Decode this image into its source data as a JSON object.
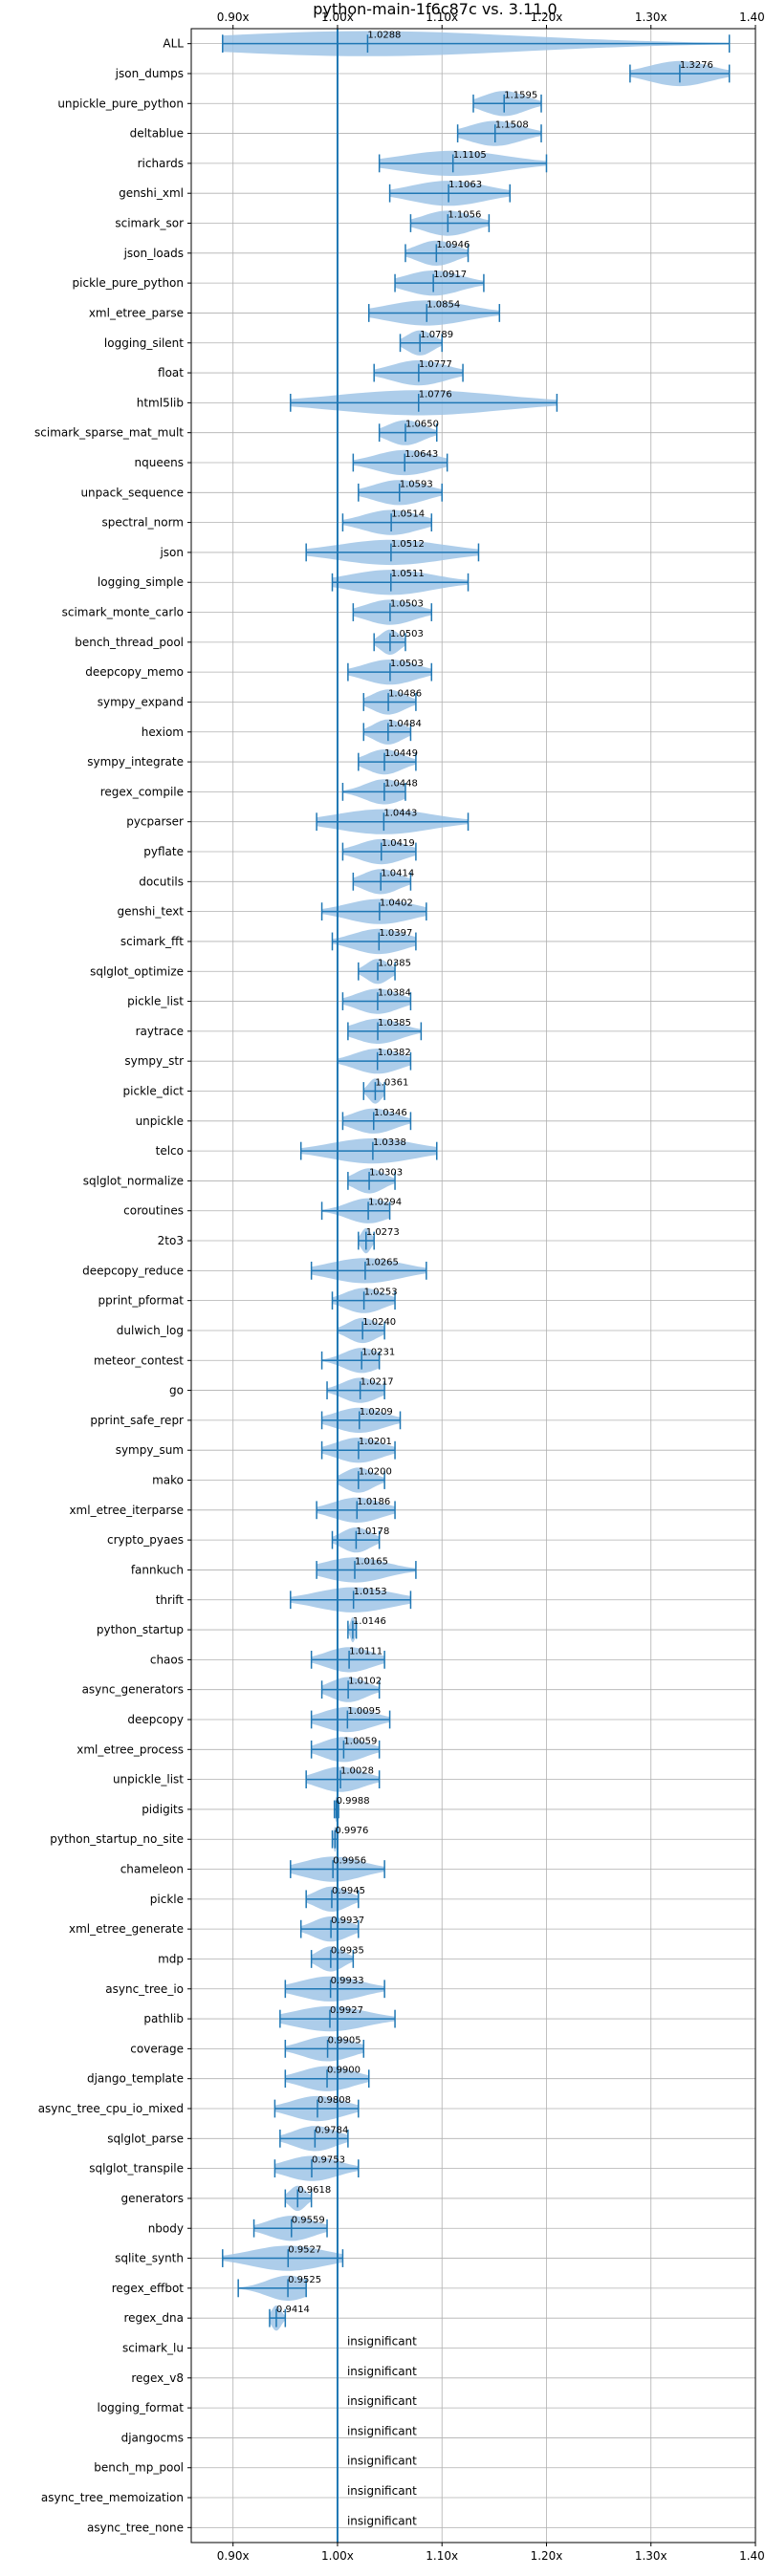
{
  "chart_data": {
    "type": "violin",
    "title": "python-main-1f6c87c vs. 3.11.0",
    "xlim": [
      0.86,
      1.4
    ],
    "x_ticks": [
      0.9,
      1.0,
      1.1,
      1.2,
      1.3,
      1.4
    ],
    "x_tick_labels": [
      "0.90x",
      "1.00x",
      "1.10x",
      "1.20x",
      "1.30x",
      "1.40x"
    ],
    "reference_line_x": 1.0,
    "grid": true,
    "colors": {
      "violin_fill": "#9fc4e6",
      "line": "#1f77b4",
      "grid": "#b0b0b0"
    },
    "insignificant_label": "insignificant",
    "benchmarks": [
      {
        "name": "ALL",
        "value": 1.0288,
        "min": 0.89,
        "max": 1.375
      },
      {
        "name": "json_dumps",
        "value": 1.3276,
        "min": 1.28,
        "max": 1.375
      },
      {
        "name": "unpickle_pure_python",
        "value": 1.1595,
        "min": 1.13,
        "max": 1.195
      },
      {
        "name": "deltablue",
        "value": 1.1508,
        "min": 1.115,
        "max": 1.195
      },
      {
        "name": "richards",
        "value": 1.1105,
        "min": 1.04,
        "max": 1.2
      },
      {
        "name": "genshi_xml",
        "value": 1.1063,
        "min": 1.05,
        "max": 1.165
      },
      {
        "name": "scimark_sor",
        "value": 1.1056,
        "min": 1.07,
        "max": 1.145
      },
      {
        "name": "json_loads",
        "value": 1.0946,
        "min": 1.065,
        "max": 1.125
      },
      {
        "name": "pickle_pure_python",
        "value": 1.0917,
        "min": 1.055,
        "max": 1.14
      },
      {
        "name": "xml_etree_parse",
        "value": 1.0854,
        "min": 1.03,
        "max": 1.155
      },
      {
        "name": "logging_silent",
        "value": 1.0789,
        "min": 1.06,
        "max": 1.1
      },
      {
        "name": "float",
        "value": 1.0777,
        "min": 1.035,
        "max": 1.12
      },
      {
        "name": "html5lib",
        "value": 1.0776,
        "min": 0.955,
        "max": 1.21
      },
      {
        "name": "scimark_sparse_mat_mult",
        "value": 1.065,
        "min": 1.04,
        "max": 1.095
      },
      {
        "name": "nqueens",
        "value": 1.0643,
        "min": 1.015,
        "max": 1.105
      },
      {
        "name": "unpack_sequence",
        "value": 1.0593,
        "min": 1.02,
        "max": 1.1
      },
      {
        "name": "spectral_norm",
        "value": 1.0514,
        "min": 1.005,
        "max": 1.09
      },
      {
        "name": "json",
        "value": 1.0512,
        "min": 0.97,
        "max": 1.135
      },
      {
        "name": "logging_simple",
        "value": 1.0511,
        "min": 0.995,
        "max": 1.125
      },
      {
        "name": "scimark_monte_carlo",
        "value": 1.0503,
        "min": 1.015,
        "max": 1.09
      },
      {
        "name": "bench_thread_pool",
        "value": 1.0503,
        "min": 1.035,
        "max": 1.065
      },
      {
        "name": "deepcopy_memo",
        "value": 1.0503,
        "min": 1.01,
        "max": 1.09
      },
      {
        "name": "sympy_expand",
        "value": 1.0486,
        "min": 1.025,
        "max": 1.075
      },
      {
        "name": "hexiom",
        "value": 1.0484,
        "min": 1.025,
        "max": 1.07
      },
      {
        "name": "sympy_integrate",
        "value": 1.0449,
        "min": 1.02,
        "max": 1.075
      },
      {
        "name": "regex_compile",
        "value": 1.0448,
        "min": 1.005,
        "max": 1.065
      },
      {
        "name": "pycparser",
        "value": 1.0443,
        "min": 0.98,
        "max": 1.125
      },
      {
        "name": "pyflate",
        "value": 1.0419,
        "min": 1.005,
        "max": 1.075
      },
      {
        "name": "docutils",
        "value": 1.0414,
        "min": 1.015,
        "max": 1.07
      },
      {
        "name": "genshi_text",
        "value": 1.0402,
        "min": 0.985,
        "max": 1.085
      },
      {
        "name": "scimark_fft",
        "value": 1.0397,
        "min": 0.995,
        "max": 1.075
      },
      {
        "name": "sqlglot_optimize",
        "value": 1.0385,
        "min": 1.02,
        "max": 1.055
      },
      {
        "name": "pickle_list",
        "value": 1.0384,
        "min": 1.005,
        "max": 1.07
      },
      {
        "name": "raytrace",
        "value": 1.0385,
        "min": 1.01,
        "max": 1.08
      },
      {
        "name": "sympy_str",
        "value": 1.0382,
        "min": 1.0,
        "max": 1.07
      },
      {
        "name": "pickle_dict",
        "value": 1.0361,
        "min": 1.025,
        "max": 1.045
      },
      {
        "name": "unpickle",
        "value": 1.0346,
        "min": 1.005,
        "max": 1.07
      },
      {
        "name": "telco",
        "value": 1.0338,
        "min": 0.965,
        "max": 1.095
      },
      {
        "name": "sqlglot_normalize",
        "value": 1.0303,
        "min": 1.01,
        "max": 1.055
      },
      {
        "name": "coroutines",
        "value": 1.0294,
        "min": 0.985,
        "max": 1.05
      },
      {
        "name": "2to3",
        "value": 1.0273,
        "min": 1.02,
        "max": 1.035
      },
      {
        "name": "deepcopy_reduce",
        "value": 1.0265,
        "min": 0.975,
        "max": 1.085
      },
      {
        "name": "pprint_pformat",
        "value": 1.0253,
        "min": 0.995,
        "max": 1.055
      },
      {
        "name": "dulwich_log",
        "value": 1.024,
        "min": 1.0,
        "max": 1.045
      },
      {
        "name": "meteor_contest",
        "value": 1.0231,
        "min": 0.985,
        "max": 1.04
      },
      {
        "name": "go",
        "value": 1.0217,
        "min": 0.99,
        "max": 1.045
      },
      {
        "name": "pprint_safe_repr",
        "value": 1.0209,
        "min": 0.985,
        "max": 1.06
      },
      {
        "name": "sympy_sum",
        "value": 1.0201,
        "min": 0.985,
        "max": 1.055
      },
      {
        "name": "mako",
        "value": 1.02,
        "min": 1.0,
        "max": 1.045
      },
      {
        "name": "xml_etree_iterparse",
        "value": 1.0186,
        "min": 0.98,
        "max": 1.055
      },
      {
        "name": "crypto_pyaes",
        "value": 1.0178,
        "min": 0.995,
        "max": 1.04
      },
      {
        "name": "fannkuch",
        "value": 1.0165,
        "min": 0.98,
        "max": 1.075
      },
      {
        "name": "thrift",
        "value": 1.0153,
        "min": 0.955,
        "max": 1.07
      },
      {
        "name": "python_startup",
        "value": 1.0146,
        "min": 1.01,
        "max": 1.018
      },
      {
        "name": "chaos",
        "value": 1.0111,
        "min": 0.975,
        "max": 1.045
      },
      {
        "name": "async_generators",
        "value": 1.0102,
        "min": 0.985,
        "max": 1.04
      },
      {
        "name": "deepcopy",
        "value": 1.0095,
        "min": 0.975,
        "max": 1.05
      },
      {
        "name": "xml_etree_process",
        "value": 1.0059,
        "min": 0.975,
        "max": 1.04
      },
      {
        "name": "unpickle_list",
        "value": 1.0028,
        "min": 0.97,
        "max": 1.04
      },
      {
        "name": "pidigits",
        "value": 0.9988,
        "min": 0.997,
        "max": 1.001
      },
      {
        "name": "python_startup_no_site",
        "value": 0.9976,
        "min": 0.995,
        "max": 1.0
      },
      {
        "name": "chameleon",
        "value": 0.9956,
        "min": 0.955,
        "max": 1.045
      },
      {
        "name": "pickle",
        "value": 0.9945,
        "min": 0.97,
        "max": 1.02
      },
      {
        "name": "xml_etree_generate",
        "value": 0.9937,
        "min": 0.965,
        "max": 1.02
      },
      {
        "name": "mdp",
        "value": 0.9935,
        "min": 0.975,
        "max": 1.015
      },
      {
        "name": "async_tree_io",
        "value": 0.9933,
        "min": 0.95,
        "max": 1.045
      },
      {
        "name": "pathlib",
        "value": 0.9927,
        "min": 0.945,
        "max": 1.055
      },
      {
        "name": "coverage",
        "value": 0.9905,
        "min": 0.95,
        "max": 1.025
      },
      {
        "name": "django_template",
        "value": 0.99,
        "min": 0.95,
        "max": 1.03
      },
      {
        "name": "async_tree_cpu_io_mixed",
        "value": 0.9808,
        "min": 0.94,
        "max": 1.02
      },
      {
        "name": "sqlglot_parse",
        "value": 0.9784,
        "min": 0.945,
        "max": 1.01
      },
      {
        "name": "sqlglot_transpile",
        "value": 0.9753,
        "min": 0.94,
        "max": 1.02
      },
      {
        "name": "generators",
        "value": 0.9618,
        "min": 0.95,
        "max": 0.975
      },
      {
        "name": "nbody",
        "value": 0.9559,
        "min": 0.92,
        "max": 0.99
      },
      {
        "name": "sqlite_synth",
        "value": 0.9527,
        "min": 0.89,
        "max": 1.005
      },
      {
        "name": "regex_effbot",
        "value": 0.9525,
        "min": 0.905,
        "max": 0.97
      },
      {
        "name": "regex_dna",
        "value": 0.9414,
        "min": 0.935,
        "max": 0.95
      },
      {
        "name": "scimark_lu",
        "insignificant": true
      },
      {
        "name": "regex_v8",
        "insignificant": true
      },
      {
        "name": "logging_format",
        "insignificant": true
      },
      {
        "name": "djangocms",
        "insignificant": true
      },
      {
        "name": "bench_mp_pool",
        "insignificant": true
      },
      {
        "name": "async_tree_memoization",
        "insignificant": true
      },
      {
        "name": "async_tree_none",
        "insignificant": true
      }
    ]
  }
}
